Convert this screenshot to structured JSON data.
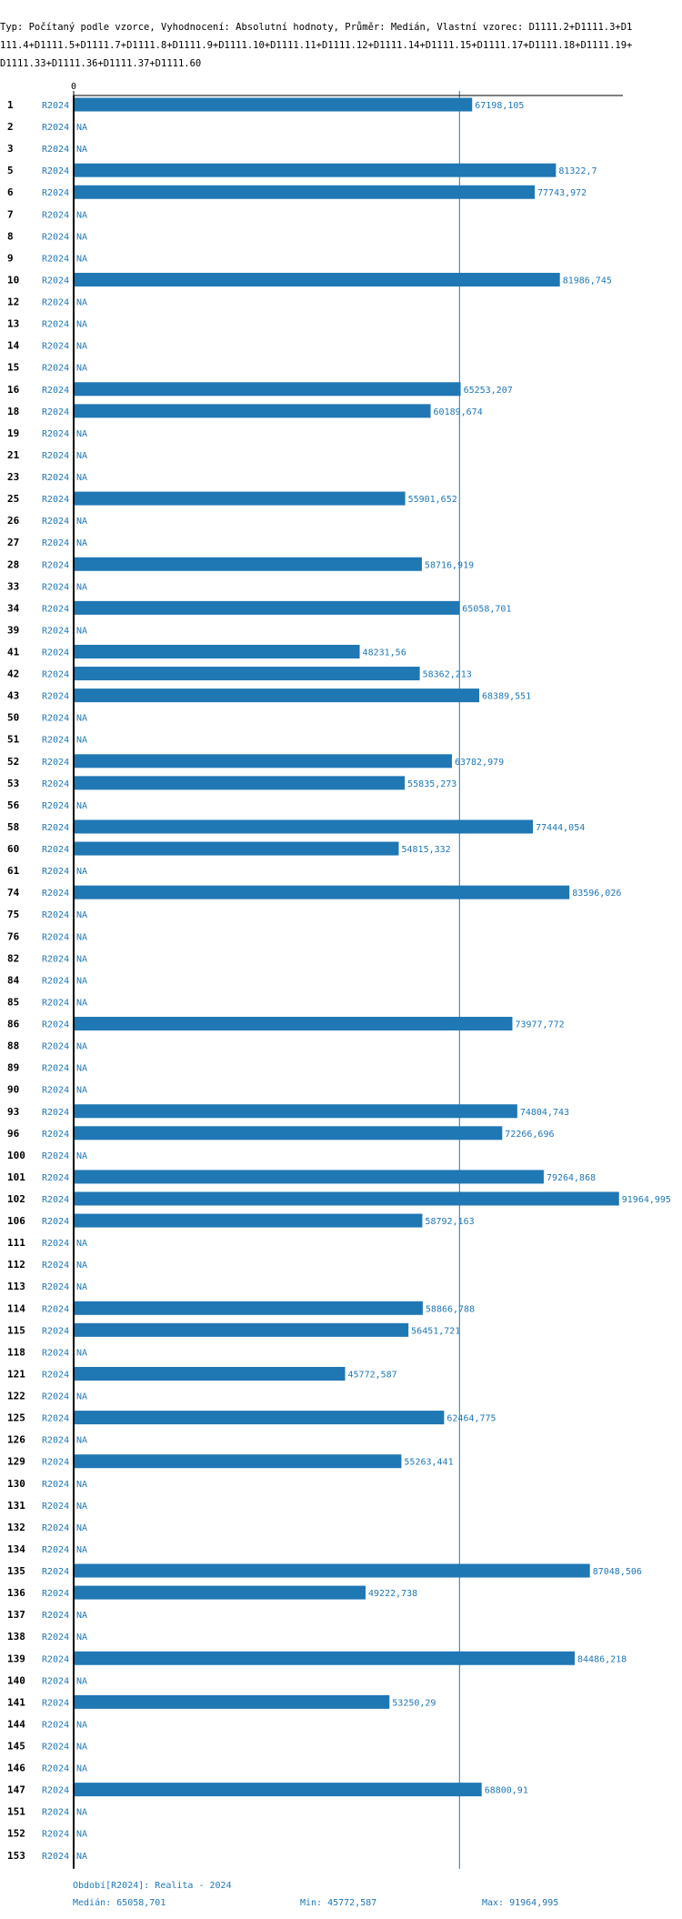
{
  "header": {
    "text": "Typ: Počítaný podle vzorce, Vyhodnocení: Absolutní hodnoty, Průměr: Medián, Vlastní vzorec: D1111.2+D1111.3+D1111.4+D1111.5+D1111.7+D1111.8+D1111.9+D1111.10+D1111.11+D1111.12+D1111.14+D1111.15+D1111.17+D1111.18+D1111.19+D1111.33+D1111.36+D1111.37+D1111.60"
  },
  "colors": {
    "bar": "#1f77b4",
    "axis": "#000000",
    "median_line": "#1f77b4"
  },
  "chart_data": {
    "type": "bar",
    "orientation": "horizontal",
    "x_axis_tick": "0",
    "xlim": [
      0,
      92000
    ],
    "period_label": "R2024",
    "na_label": "NA",
    "median": 65058.701,
    "categories": [
      "1",
      "2",
      "3",
      "5",
      "6",
      "7",
      "8",
      "9",
      "10",
      "12",
      "13",
      "14",
      "15",
      "16",
      "18",
      "19",
      "21",
      "23",
      "25",
      "26",
      "27",
      "28",
      "33",
      "34",
      "39",
      "41",
      "42",
      "43",
      "50",
      "51",
      "52",
      "53",
      "56",
      "58",
      "60",
      "61",
      "74",
      "75",
      "76",
      "82",
      "84",
      "85",
      "86",
      "88",
      "89",
      "90",
      "93",
      "96",
      "100",
      "101",
      "102",
      "106",
      "111",
      "112",
      "113",
      "114",
      "115",
      "118",
      "121",
      "122",
      "125",
      "126",
      "129",
      "130",
      "131",
      "132",
      "134",
      "135",
      "136",
      "137",
      "138",
      "139",
      "140",
      "141",
      "144",
      "145",
      "146",
      "147",
      "151",
      "152",
      "153"
    ],
    "values": [
      67198.105,
      null,
      null,
      81322.7,
      77743.972,
      null,
      null,
      null,
      81986.745,
      null,
      null,
      null,
      null,
      65253.207,
      60189.674,
      null,
      null,
      null,
      55901.652,
      null,
      null,
      58716.919,
      null,
      65058.701,
      null,
      48231.56,
      58362.213,
      68389.551,
      null,
      null,
      63782.979,
      55835.273,
      null,
      77444.054,
      54815.332,
      null,
      83596.026,
      null,
      null,
      null,
      null,
      null,
      73977.772,
      null,
      null,
      null,
      74804.743,
      72266.696,
      null,
      79264.868,
      91964.995,
      58792.163,
      null,
      null,
      null,
      58866.788,
      56451.721,
      null,
      45772.587,
      null,
      62464.775,
      null,
      55263.441,
      null,
      null,
      null,
      null,
      87048.506,
      49222.738,
      null,
      null,
      84486.218,
      null,
      53250.29,
      null,
      null,
      null,
      68800.91,
      null,
      null,
      null
    ],
    "value_labels": [
      "67198,105",
      "NA",
      "NA",
      "81322,7",
      "77743,972",
      "NA",
      "NA",
      "NA",
      "81986,745",
      "NA",
      "NA",
      "NA",
      "NA",
      "65253,207",
      "60189,674",
      "NA",
      "NA",
      "NA",
      "55901,652",
      "NA",
      "NA",
      "58716,919",
      "NA",
      "65058,701",
      "NA",
      "48231,56",
      "58362,213",
      "68389,551",
      "NA",
      "NA",
      "63782,979",
      "55835,273",
      "NA",
      "77444,054",
      "54815,332",
      "NA",
      "83596,026",
      "NA",
      "NA",
      "NA",
      "NA",
      "NA",
      "73977,772",
      "NA",
      "NA",
      "NA",
      "74804,743",
      "72266,696",
      "NA",
      "79264,868",
      "91964,995",
      "58792,163",
      "NA",
      "NA",
      "NA",
      "58866,788",
      "56451,721",
      "NA",
      "45772,587",
      "NA",
      "62464,775",
      "NA",
      "55263,441",
      "NA",
      "NA",
      "NA",
      "NA",
      "87048,506",
      "49222,738",
      "NA",
      "NA",
      "84486,218",
      "NA",
      "53250,29",
      "NA",
      "NA",
      "NA",
      "68800,91",
      "NA",
      "NA",
      "NA"
    ]
  },
  "footer": {
    "period": "Období[R2024]: Realita - 2024",
    "median": "Medián: 65058,701",
    "min": "Min: 45772,587",
    "max": "Max: 91964,995"
  }
}
